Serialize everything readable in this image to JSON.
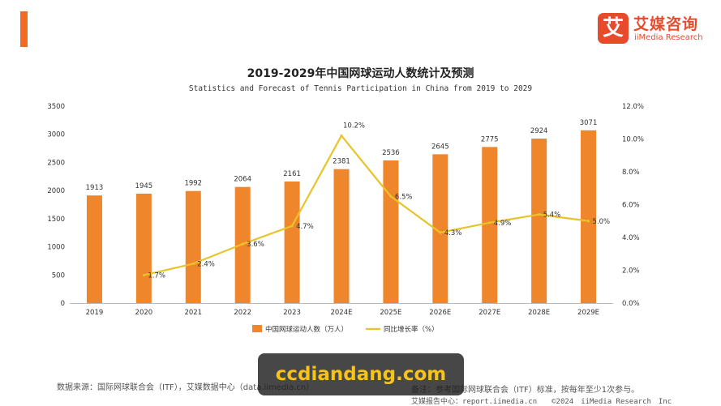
{
  "brand": {
    "logo_mark": "艾",
    "name_cn": "艾媒咨询",
    "name_en": "iiMedia Research"
  },
  "colors": {
    "accent": "#f26b21",
    "bar": "#f0862c",
    "line": "#e8c32a",
    "logo": "#e84a2c"
  },
  "chart_data": {
    "type": "bar",
    "title": "2019-2029年中国网球运动人数统计及预测",
    "subtitle": "Statistics and Forecast of Tennis Participation in China from 2019 to 2029",
    "categories": [
      "2019",
      "2020",
      "2021",
      "2022",
      "2023",
      "2024E",
      "2025E",
      "2026E",
      "2027E",
      "2028E",
      "2029E"
    ],
    "series": [
      {
        "name": "中国网球运动人数（万人）",
        "type": "bar",
        "axis": "left",
        "values": [
          1913,
          1945,
          1992,
          2064,
          2161,
          2381,
          2536,
          2645,
          2775,
          2924,
          3071
        ],
        "labels": [
          "1913",
          "1945",
          "1992",
          "2064",
          "2161",
          "2381",
          "2536",
          "2645",
          "2775",
          "2924",
          "3071"
        ]
      },
      {
        "name": "同比增长率（%）",
        "type": "line",
        "axis": "right",
        "values": [
          null,
          1.7,
          2.4,
          3.6,
          4.7,
          10.2,
          6.5,
          4.3,
          4.9,
          5.4,
          5.0
        ],
        "labels": [
          "",
          "1.7%",
          "2.4%",
          "3.6%",
          "4.7%",
          "10.2%",
          "6.5%",
          "4.3%",
          "4.9%",
          "5.4%",
          "5.0%"
        ]
      }
    ],
    "y_left": {
      "min": 0,
      "max": 3500,
      "ticks": [
        "0",
        "500",
        "1000",
        "1500",
        "2000",
        "2500",
        "3000",
        "3500"
      ]
    },
    "y_right": {
      "min": 0,
      "max": 12,
      "ticks": [
        "0.0%",
        "2.0%",
        "4.0%",
        "6.0%",
        "8.0%",
        "10.0%",
        "12.0%"
      ]
    },
    "grid": false,
    "legend": "bottom-center"
  },
  "footer": {
    "source": "数据来源：国际网球联合会（ITF），艾媒数据中心（data.iimedia.cn）",
    "note": "备注：参考国际网球联合会（ITF）标准，按每年至少1次参与。",
    "report": "艾媒报告中心：report.iimedia.cn　　©2024　iiMedia Research　Inc"
  },
  "watermark": "ccdiandang.com"
}
